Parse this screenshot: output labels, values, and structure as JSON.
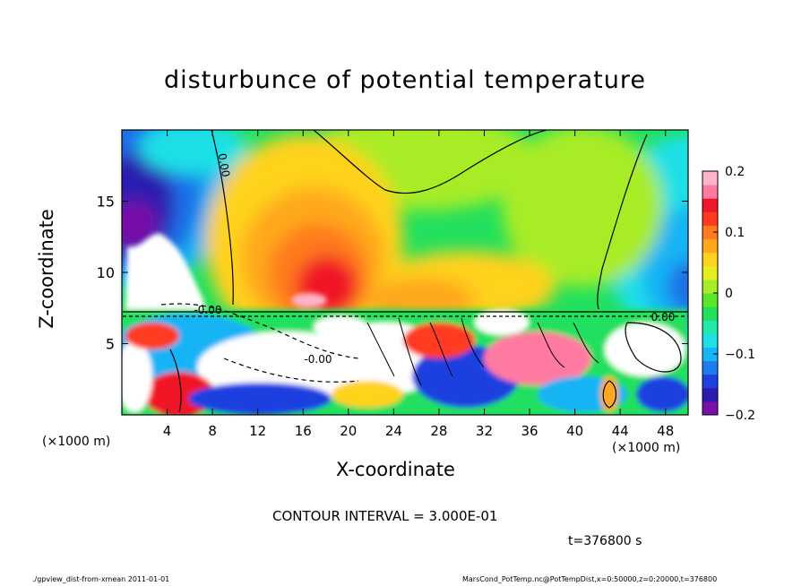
{
  "chart_data": {
    "type": "heatmap",
    "title": "disturbunce of potential temperature",
    "xlabel": "X-coordinate",
    "ylabel": "Z-coordinate",
    "x_unit_left": "(×1000 m)",
    "x_unit_right": "(×1000 m)",
    "xlim": [
      0,
      50
    ],
    "ylim": [
      0,
      20
    ],
    "x_ticks": [
      4,
      8,
      12,
      16,
      20,
      24,
      28,
      32,
      36,
      40,
      44,
      48
    ],
    "x_tick_labels": [
      "4",
      "8",
      "12",
      "16",
      "20",
      "24",
      "28",
      "32",
      "36",
      "40",
      "44",
      "48"
    ],
    "y_ticks": [
      5,
      10,
      15
    ],
    "y_tick_labels": [
      "5",
      "10",
      "15"
    ],
    "colorbar": {
      "range": [
        -0.2,
        0.2
      ],
      "ticks": [
        0.2,
        0.1,
        0,
        -0.1,
        -0.2
      ],
      "tick_labels": [
        "0.2",
        "0.1",
        "0",
        "−0.1",
        "−0.2"
      ],
      "colors": [
        "#7a10a8",
        "#2a1db0",
        "#1f3fe0",
        "#1f7cf0",
        "#19b4f5",
        "#1fe0e6",
        "#22e8a8",
        "#20e05a",
        "#5ae62a",
        "#a8ec26",
        "#e6ee20",
        "#ffd21e",
        "#ffa81e",
        "#ff7a1e",
        "#ff3a20",
        "#f01828",
        "#ff7aa0",
        "#ffb4c8"
      ]
    },
    "contour_labels": [
      "0.00",
      "-0.00"
    ],
    "contour_interval": "CONTOUR INTERVAL = 3.000E-01",
    "time": "t=376800 s"
  },
  "footer": {
    "left": "./gpview_dist-from-xmean   2011-01-01",
    "right": "MarsCond_PotTemp.nc@PotTempDist,x=0:50000,z=0:20000,t=376800"
  }
}
